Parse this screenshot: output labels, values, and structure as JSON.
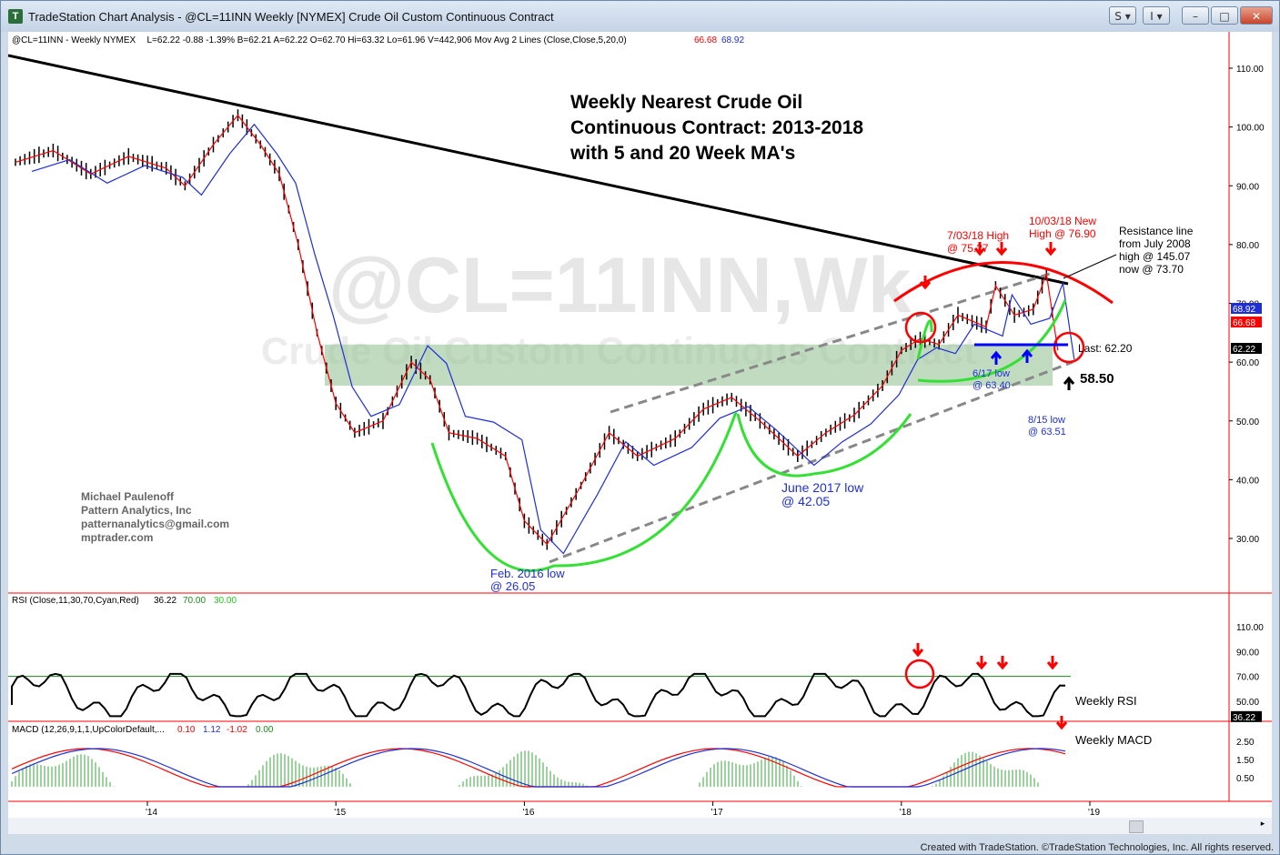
{
  "window": {
    "title": "TradeStation Chart Analysis - @CL=11INN Weekly [NYMEX] Crude Oil Custom Continuous Contract",
    "icon": "tradestation-logo-icon",
    "buttons": [
      "S ▾",
      "I ▾",
      "–",
      "□",
      "✕"
    ],
    "footer": "Created with TradeStation. ©TradeStation Technologies, Inc. All rights reserved."
  },
  "price_panel": {
    "header": {
      "symbol": "@CL=11INN - Weekly  NYMEX",
      "stats": "L=62.22  -0.88  -1.39%  B=62.21  A=62.22  O=62.70  Hi=63.32  Lo=61.96  V=442,906  Mov Avg 2 Lines (Close,Close,5,20,0)",
      "ma_fast_value": "66.68",
      "ma_slow_value": "68.92"
    },
    "watermark": "@CL=11INN,Wk",
    "watermark_sub": "Crude Oil Custom Continuous Contract",
    "title_lines": [
      "Weekly Nearest Crude Oil",
      "Continuous Contract: 2013-2018",
      "with 5 and 20 Week MA's"
    ],
    "credit_lines": [
      "Michael Paulenoff",
      "Pattern Analytics, Inc",
      "patternanalytics@gmail.com",
      "mptrader.com"
    ],
    "annotations": {
      "feb2016": [
        "Feb. 2016 low",
        "@ 26.05"
      ],
      "june2017": [
        "June 2017 low",
        "@ 42.05"
      ],
      "jul2018": [
        "7/03/18 High",
        "@ 75.27"
      ],
      "oct2018": [
        "10/03/18 New",
        "High @ 76.90"
      ],
      "resistance": [
        "Resistance line",
        "from July 2008",
        "high @ 145.07",
        "now @ 73.70"
      ],
      "jun17low": [
        "6/17 low",
        "@ 63.40"
      ],
      "aug15low": [
        "8/15 low",
        "@ 63.51"
      ],
      "last": "Last: 62.20",
      "support": "58.50"
    },
    "axis_tags": {
      "ma_slow": "68.92",
      "ma_fast": "66.68",
      "last": "62.22"
    },
    "colors": {
      "ma_slow_tag": "#1f2fd6",
      "ma_fast_tag": "#ff0000",
      "last_tag": "#000000"
    }
  },
  "rsi_panel": {
    "header": "RSI (Close,11,30,70,Cyan,Red)",
    "value": "36.22",
    "ob": "70.00",
    "os": "30.00",
    "label": "Weekly RSI",
    "ticks": [
      "110.00",
      "90.00",
      "70.00",
      "50.00"
    ],
    "tag": "36.22"
  },
  "macd_panel": {
    "header": "MACD (12,26,9,1,1,UpColorDefault,...",
    "v1": "0.10",
    "v2": "1.12",
    "v3": "-1.02",
    "v4": "0.00",
    "label": "Weekly MACD",
    "ticks": [
      "2.50",
      "1.50",
      "0.50"
    ]
  },
  "chart_data": {
    "type": "line",
    "title": "Weekly Nearest Crude Oil Continuous Contract: 2013-2018 with 5 and 20 Week MA's",
    "xlabel": "",
    "ylabel": "",
    "x_ticks": [
      "'14",
      "'15",
      "'16",
      "'17",
      "'18",
      "'19"
    ],
    "y_ticks": [
      "110.00",
      "100.00",
      "90.00",
      "80.00",
      "70.00",
      "60.00",
      "50.00",
      "40.00",
      "30.00"
    ],
    "ylim": [
      21,
      116
    ],
    "x": [
      2013.3,
      2013.5,
      2013.7,
      2013.9,
      2014.1,
      2014.2,
      2014.35,
      2014.48,
      2014.6,
      2014.7,
      2014.8,
      2014.9,
      2015.0,
      2015.1,
      2015.25,
      2015.4,
      2015.5,
      2015.6,
      2015.75,
      2015.9,
      2016.0,
      2016.12,
      2016.3,
      2016.45,
      2016.6,
      2016.8,
      2016.95,
      2017.1,
      2017.25,
      2017.45,
      2017.6,
      2017.75,
      2017.9,
      2018.0,
      2018.1,
      2018.2,
      2018.3,
      2018.45,
      2018.5,
      2018.6,
      2018.7,
      2018.77,
      2018.83
    ],
    "series": [
      {
        "name": "Close",
        "values": [
          94,
          96,
          92,
          95,
          93,
          90,
          97,
          102,
          97,
          92,
          80,
          65,
          53,
          48,
          50,
          60,
          57,
          48,
          47,
          44,
          33,
          29,
          39,
          48,
          44,
          47,
          52,
          54,
          50,
          44,
          48,
          51,
          56,
          62,
          64,
          63,
          68,
          66,
          73,
          68,
          69,
          75,
          62
        ]
      }
    ],
    "resistance_line": {
      "from": [
        2013.25,
        112
      ],
      "to": [
        2018.8,
        74
      ]
    },
    "channel": {
      "lower": [
        [
          2016.1,
          26
        ],
        [
          2018.9,
          60
        ]
      ],
      "upper": [
        [
          2016.45,
          52
        ],
        [
          2018.9,
          80
        ]
      ]
    },
    "key_levels": [
      {
        "label": "Feb. 2016 low",
        "value": 26.05
      },
      {
        "label": "June 2017 low",
        "value": 42.05
      },
      {
        "label": "7/03/18 High",
        "value": 75.27
      },
      {
        "label": "10/03/18 New High",
        "value": 76.9
      },
      {
        "label": "6/17 low",
        "value": 63.4
      },
      {
        "label": "8/15 low",
        "value": 63.51
      },
      {
        "label": "Last",
        "value": 62.2
      },
      {
        "label": "support",
        "value": 58.5
      }
    ],
    "zone": [
      56,
      63
    ]
  }
}
